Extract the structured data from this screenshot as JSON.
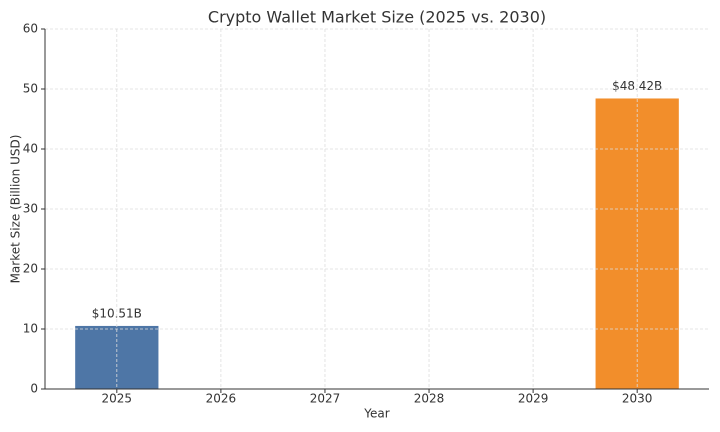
{
  "chart_data": {
    "type": "bar",
    "title": "Crypto Wallet Market Size (2025 vs. 2030)",
    "x_label": "Year",
    "y_label": "Market Size (Billion USD)",
    "x": [
      2025,
      2030
    ],
    "values": [
      10.51,
      48.42
    ],
    "value_labels": [
      "$10.51B",
      "$48.42B"
    ],
    "colors": [
      "#4e76a6",
      "#f28e2b"
    ],
    "xlim": [
      2024.31,
      2030.69
    ],
    "xticks": [
      2025,
      2026,
      2027,
      2028,
      2029,
      2030
    ],
    "ylim": [
      0,
      60
    ],
    "yticks": [
      0,
      10,
      20,
      30,
      40,
      50,
      60
    ],
    "grid": true
  }
}
